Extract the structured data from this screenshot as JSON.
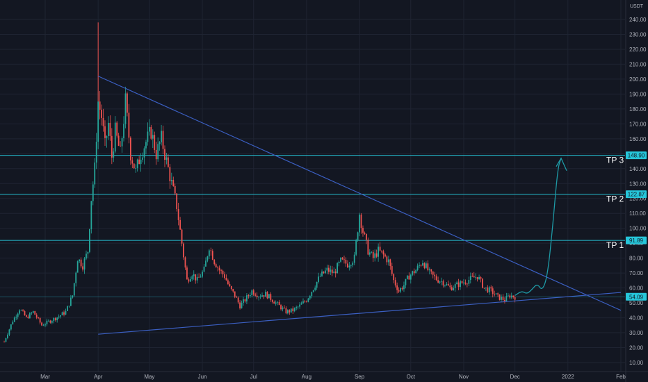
{
  "currency": "USDT",
  "colors": {
    "background": "#131722",
    "grid": "#1f2432",
    "up": "#26a69a",
    "down": "#ef5350",
    "trendline": "#3b5fc2",
    "level": "#26c6da",
    "projection": "#1e9aa6",
    "axis_text": "#b2b5be"
  },
  "chart_data": {
    "type": "candlestick",
    "ylim": [
      5,
      250
    ],
    "y_ticks": [
      10,
      20,
      30,
      40,
      50,
      60,
      70,
      80,
      90,
      100,
      110,
      120,
      130,
      140,
      150,
      160,
      170,
      180,
      190,
      200,
      210,
      220,
      230,
      240
    ],
    "y_tick_labels": [
      "10.00",
      "20.00",
      "30.00",
      "40.00",
      "50.00",
      "60.00",
      "70.00",
      "80.00",
      "90.00",
      "100.00",
      "110.00",
      "120.00",
      "130.00",
      "140.00",
      "150.00",
      "160.00",
      "170.00",
      "180.00",
      "190.00",
      "200.00",
      "210.00",
      "220.00",
      "230.00",
      "240.00"
    ],
    "x_ticks": [
      {
        "label": "Mar",
        "date": "2021-03-01"
      },
      {
        "label": "Apr",
        "date": "2021-04-01"
      },
      {
        "label": "May",
        "date": "2021-05-01"
      },
      {
        "label": "Jun",
        "date": "2021-06-01"
      },
      {
        "label": "Jul",
        "date": "2021-07-01"
      },
      {
        "label": "Aug",
        "date": "2021-08-01"
      },
      {
        "label": "Sep",
        "date": "2021-09-01"
      },
      {
        "label": "Oct",
        "date": "2021-10-01"
      },
      {
        "label": "Nov",
        "date": "2021-11-01"
      },
      {
        "label": "Dec",
        "date": "2021-12-01"
      },
      {
        "label": "2022",
        "date": "2022-01-01"
      },
      {
        "label": "Feb",
        "date": "2022-02-01"
      }
    ],
    "price_path": [
      [
        "2021-02-05",
        24
      ],
      [
        "2021-02-10",
        38
      ],
      [
        "2021-02-14",
        46
      ],
      [
        "2021-02-18",
        40
      ],
      [
        "2021-02-22",
        44
      ],
      [
        "2021-02-27",
        35
      ],
      [
        "2021-03-04",
        38
      ],
      [
        "2021-03-09",
        41
      ],
      [
        "2021-03-13",
        44
      ],
      [
        "2021-03-17",
        55
      ],
      [
        "2021-03-20",
        80
      ],
      [
        "2021-03-23",
        75
      ],
      [
        "2021-03-26",
        85
      ],
      [
        "2021-03-28",
        120
      ],
      [
        "2021-03-30",
        140
      ],
      [
        "2021-04-01",
        185
      ],
      [
        "2021-04-03",
        175
      ],
      [
        "2021-04-05",
        155
      ],
      [
        "2021-04-07",
        170
      ],
      [
        "2021-04-09",
        148
      ],
      [
        "2021-04-11",
        165
      ],
      [
        "2021-04-14",
        150
      ],
      [
        "2021-04-17",
        185
      ],
      [
        "2021-04-20",
        150
      ],
      [
        "2021-04-23",
        138
      ],
      [
        "2021-04-26",
        150
      ],
      [
        "2021-04-29",
        158
      ],
      [
        "2021-05-02",
        165
      ],
      [
        "2021-05-05",
        150
      ],
      [
        "2021-05-08",
        160
      ],
      [
        "2021-05-11",
        145
      ],
      [
        "2021-05-14",
        130
      ],
      [
        "2021-05-17",
        115
      ],
      [
        "2021-05-20",
        90
      ],
      [
        "2021-05-23",
        65
      ],
      [
        "2021-05-26",
        70
      ],
      [
        "2021-05-29",
        65
      ],
      [
        "2021-06-02",
        72
      ],
      [
        "2021-06-05",
        88
      ],
      [
        "2021-06-08",
        78
      ],
      [
        "2021-06-11",
        72
      ],
      [
        "2021-06-14",
        68
      ],
      [
        "2021-06-17",
        60
      ],
      [
        "2021-06-20",
        55
      ],
      [
        "2021-06-23",
        48
      ],
      [
        "2021-06-26",
        52
      ],
      [
        "2021-06-30",
        58
      ],
      [
        "2021-07-04",
        55
      ],
      [
        "2021-07-08",
        56
      ],
      [
        "2021-07-12",
        52
      ],
      [
        "2021-07-16",
        48
      ],
      [
        "2021-07-20",
        44
      ],
      [
        "2021-07-24",
        45
      ],
      [
        "2021-07-28",
        48
      ],
      [
        "2021-08-01",
        52
      ],
      [
        "2021-08-05",
        60
      ],
      [
        "2021-08-09",
        68
      ],
      [
        "2021-08-13",
        72
      ],
      [
        "2021-08-17",
        70
      ],
      [
        "2021-08-21",
        78
      ],
      [
        "2021-08-25",
        76
      ],
      [
        "2021-08-29",
        80
      ],
      [
        "2021-09-01",
        110
      ],
      [
        "2021-09-03",
        98
      ],
      [
        "2021-09-06",
        85
      ],
      [
        "2021-09-09",
        80
      ],
      [
        "2021-09-12",
        85
      ],
      [
        "2021-09-15",
        82
      ],
      [
        "2021-09-18",
        78
      ],
      [
        "2021-09-21",
        65
      ],
      [
        "2021-09-24",
        58
      ],
      [
        "2021-09-27",
        62
      ],
      [
        "2021-09-30",
        68
      ],
      [
        "2021-10-04",
        72
      ],
      [
        "2021-10-08",
        78
      ],
      [
        "2021-10-12",
        70
      ],
      [
        "2021-10-16",
        66
      ],
      [
        "2021-10-20",
        64
      ],
      [
        "2021-10-24",
        60
      ],
      [
        "2021-10-28",
        62
      ],
      [
        "2021-11-01",
        64
      ],
      [
        "2021-11-05",
        66
      ],
      [
        "2021-11-09",
        68
      ],
      [
        "2021-11-13",
        60
      ],
      [
        "2021-11-17",
        58
      ],
      [
        "2021-11-21",
        54
      ],
      [
        "2021-11-25",
        52
      ],
      [
        "2021-11-28",
        55
      ],
      [
        "2021-12-01",
        54
      ]
    ],
    "spikes": [
      {
        "date": "2021-04-01",
        "high": 238
      }
    ],
    "trendlines": [
      {
        "name": "descending",
        "from": [
          "2021-04-01",
          202
        ],
        "to": [
          "2022-02-01",
          45
        ]
      },
      {
        "name": "ascending",
        "from": [
          "2021-04-01",
          29
        ],
        "to": [
          "2022-02-01",
          57
        ]
      }
    ],
    "levels": [
      {
        "value": 148.9,
        "badge": "148.90",
        "label": "TP 3"
      },
      {
        "value": 122.87,
        "badge": "122.87",
        "label": "TP 2"
      },
      {
        "value": 91.89,
        "badge": "91.89",
        "label": "TP 1"
      },
      {
        "value": 54.09,
        "badge": "54.09",
        "label": ""
      }
    ],
    "projection": [
      [
        "2021-12-01",
        55
      ],
      [
        "2021-12-05",
        58
      ],
      [
        "2021-12-08",
        56
      ],
      [
        "2021-12-11",
        59
      ],
      [
        "2021-12-14",
        63
      ],
      [
        "2021-12-17",
        58
      ],
      [
        "2021-12-20",
        68
      ],
      [
        "2021-12-23",
        100
      ],
      [
        "2021-12-26",
        140
      ],
      [
        "2021-12-28",
        147
      ]
    ],
    "arrow_tip": [
      "2021-12-28",
      147
    ]
  }
}
